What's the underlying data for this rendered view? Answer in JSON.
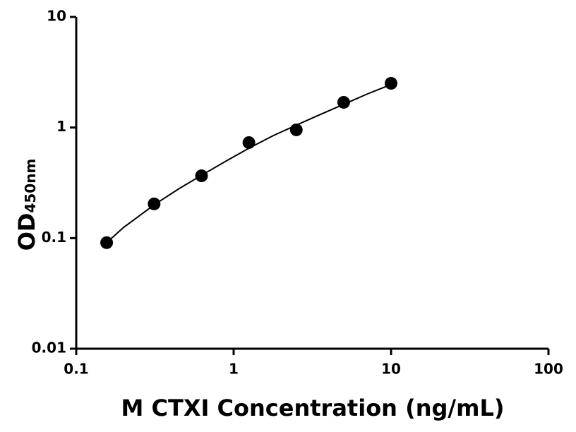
{
  "chart_data": {
    "type": "scatter",
    "x_label": "M CTXI Concentration (ng/mL)",
    "y_label": "OD",
    "y_label_sub": "450nm",
    "xlog": true,
    "ylog": true,
    "xlim": [
      0.1,
      100
    ],
    "ylim": [
      0.01,
      10
    ],
    "xticks": [
      0.1,
      1,
      10,
      100
    ],
    "yticks": [
      0.01,
      0.1,
      1,
      10
    ],
    "series": [
      {
        "type": "scatter",
        "color": "#000000",
        "x": [
          0.156,
          0.3125,
          0.625,
          1.25,
          2.5,
          5,
          10
        ],
        "values": [
          0.091,
          0.204,
          0.366,
          0.731,
          0.953,
          1.69,
          2.51
        ]
      },
      {
        "type": "line",
        "color": "#000000",
        "x": [
          0.156,
          0.2,
          0.3125,
          0.45,
          0.625,
          0.9,
          1.25,
          1.8,
          2.5,
          3.5,
          5,
          7,
          10
        ],
        "values": [
          0.091,
          0.125,
          0.2,
          0.28,
          0.37,
          0.5,
          0.65,
          0.85,
          1.05,
          1.3,
          1.62,
          2.0,
          2.45
        ]
      }
    ]
  }
}
